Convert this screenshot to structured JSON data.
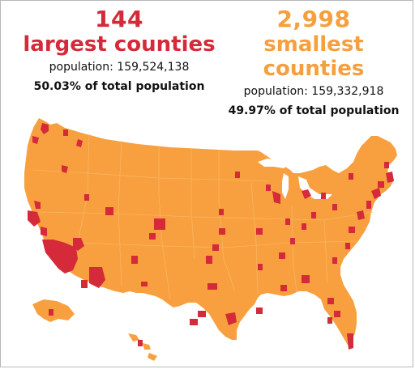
{
  "colors": {
    "largest": "#d42a3a",
    "smallest": "#f59f3e",
    "map_base": "#f8a03f",
    "map_lines": "#f7b563"
  },
  "largest": {
    "count": "144",
    "label": "largest counties",
    "population": "population: 159,524,138",
    "percent": "50.03% of total population"
  },
  "smallest": {
    "count": "2,998",
    "label": "smallest counties",
    "population": "population: 159,332,918",
    "percent": "49.97% of total population"
  }
}
